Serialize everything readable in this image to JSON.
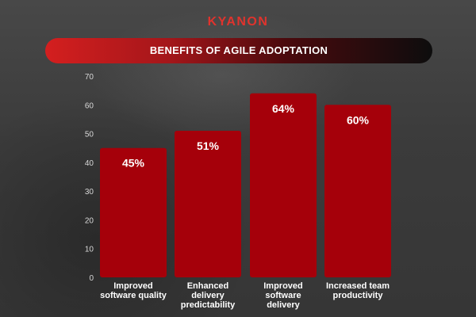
{
  "brand": {
    "logo_text": "KYANON",
    "accent_color": "#e0332d"
  },
  "banner": {
    "title": "BENEFITS OF AGILE ADOPTATION"
  },
  "chart_data": {
    "type": "bar",
    "title": "BENEFITS OF AGILE ADOPTATION",
    "xlabel": "",
    "ylabel": "",
    "ylim": [
      0,
      70
    ],
    "yticks": [
      0,
      10,
      20,
      30,
      40,
      50,
      60,
      70
    ],
    "grid": false,
    "bar_color": "#a5000a",
    "categories": [
      [
        "Improved",
        "software quality"
      ],
      [
        "Enhanced",
        "delivery",
        "predictability"
      ],
      [
        "Improved",
        "software",
        "delivery"
      ],
      [
        "Increased team",
        "productivity"
      ]
    ],
    "values": [
      45,
      51,
      64,
      60
    ],
    "data_labels": [
      "45%",
      "51%",
      "64%",
      "60%"
    ]
  }
}
